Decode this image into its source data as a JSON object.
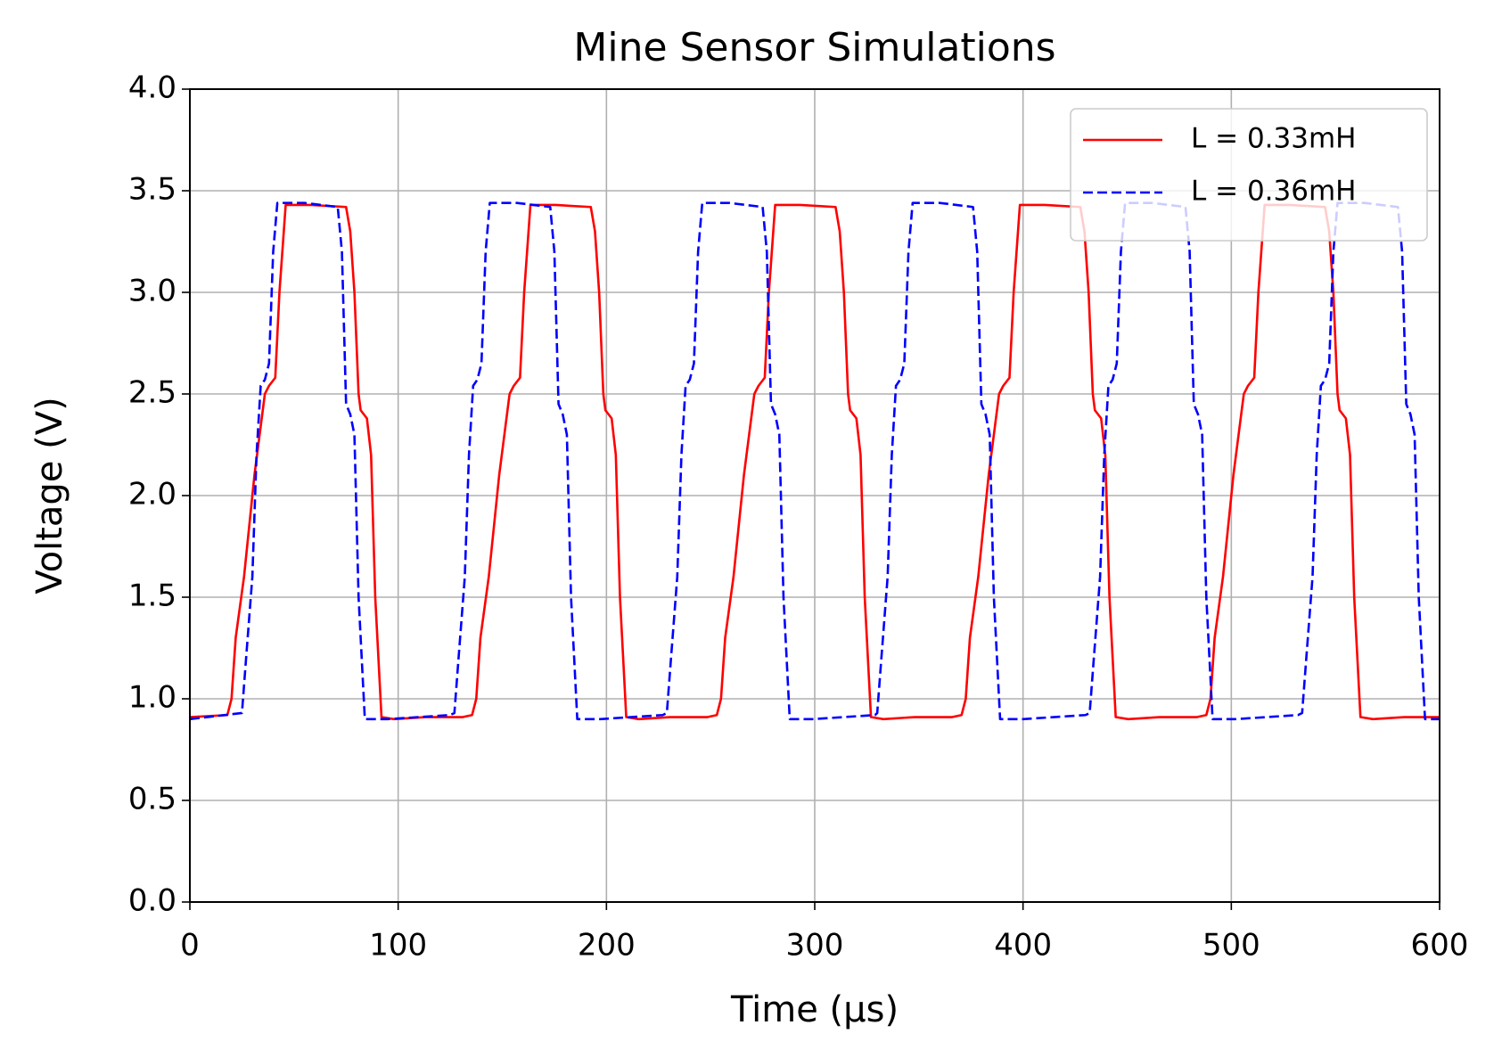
{
  "chart_data": {
    "type": "line",
    "title": "Mine Sensor Simulations",
    "x_label": "Time (µs)",
    "y_label": "Voltage (V)",
    "xlim": [
      0,
      600
    ],
    "ylim": [
      0.0,
      4.0
    ],
    "xticks": [
      0,
      100,
      200,
      300,
      400,
      500,
      600
    ],
    "yticks": [
      {
        "value": 0,
        "label": "0.0"
      },
      0.5,
      {
        "value": 1,
        "label": "1.0"
      },
      1.5,
      {
        "value": 2,
        "label": "2.0"
      },
      2.5,
      {
        "value": 3,
        "label": "3.0"
      },
      3.5,
      {
        "value": 4,
        "label": "4.0"
      }
    ],
    "grid": true,
    "legend": "upper right",
    "series": [
      {
        "name": "L = 0.33mH",
        "color": "#ff0000",
        "linestyle": "solid",
        "x": [
          0,
          18,
          20,
          22,
          26,
          31,
          36,
          38,
          41,
          43,
          46,
          58,
          75,
          77,
          79,
          81,
          82,
          85,
          87,
          89,
          92,
          98,
          113,
          131,
          135.5,
          137.5,
          139.5,
          143.5,
          148.5,
          153.5,
          155.5,
          158.5,
          160.5,
          163.5,
          175.5,
          192.5,
          194.5,
          196.5,
          198.5,
          199.5,
          202.5,
          204.5,
          206.5,
          209.5,
          215.5,
          230.5,
          248.5,
          253,
          255,
          257,
          261,
          266,
          271,
          273,
          276,
          278,
          281,
          293,
          310,
          312,
          314,
          316,
          317,
          320,
          322,
          324,
          327,
          333,
          348,
          366,
          370.5,
          372.5,
          374.5,
          378.5,
          383.5,
          388.5,
          390.5,
          393.5,
          395.5,
          398.5,
          410.5,
          427.5,
          429.5,
          431.5,
          433.5,
          434.5,
          437.5,
          439.5,
          441.5,
          444.5,
          450.5,
          465.5,
          483.5,
          488,
          490,
          492,
          496,
          501,
          506,
          508,
          511,
          513,
          516,
          528,
          545,
          547,
          549,
          551,
          552,
          555,
          557,
          559,
          562,
          568,
          583,
          600
        ],
        "values": [
          0.91,
          0.92,
          1.0,
          1.3,
          1.6,
          2.1,
          2.5,
          2.54,
          2.58,
          3.0,
          3.43,
          3.43,
          3.42,
          3.3,
          3.0,
          2.5,
          2.42,
          2.38,
          2.2,
          1.5,
          0.91,
          0.9,
          0.91,
          0.91,
          0.92,
          1.0,
          1.3,
          1.6,
          2.1,
          2.5,
          2.54,
          2.58,
          3.0,
          3.43,
          3.43,
          3.42,
          3.3,
          3.0,
          2.5,
          2.42,
          2.38,
          2.2,
          1.5,
          0.91,
          0.9,
          0.91,
          0.91,
          0.92,
          1.0,
          1.3,
          1.6,
          2.1,
          2.5,
          2.54,
          2.58,
          3.0,
          3.43,
          3.43,
          3.42,
          3.3,
          3.0,
          2.5,
          2.42,
          2.38,
          2.2,
          1.5,
          0.91,
          0.9,
          0.91,
          0.91,
          0.92,
          1.0,
          1.3,
          1.6,
          2.1,
          2.5,
          2.54,
          2.58,
          3.0,
          3.43,
          3.43,
          3.42,
          3.3,
          3.0,
          2.5,
          2.42,
          2.38,
          2.2,
          1.5,
          0.91,
          0.9,
          0.91,
          0.91,
          0.92,
          1.0,
          1.3,
          1.6,
          2.1,
          2.5,
          2.54,
          2.58,
          3.0,
          3.43,
          3.43,
          3.42,
          3.3,
          3.0,
          2.5,
          2.42,
          2.38,
          2.2,
          1.5,
          0.91,
          0.9,
          0.91,
          0.91
        ]
      },
      {
        "name": "L = 0.36mH",
        "color": "#0000ff",
        "linestyle": "dashed",
        "x": [
          0,
          25,
          27,
          30,
          32,
          34,
          36,
          38,
          40,
          42,
          55,
          71,
          73,
          75,
          77,
          79,
          81,
          84,
          95,
          125,
          127,
          129,
          132,
          134,
          136,
          138,
          140,
          142,
          144,
          157,
          173,
          175,
          177,
          179,
          181,
          183,
          186,
          197,
          227,
          229,
          231,
          234,
          236,
          238,
          240,
          242,
          244,
          246,
          259,
          275,
          277,
          279,
          281,
          283,
          285,
          288,
          299,
          329,
          330,
          332,
          335,
          337,
          339,
          341,
          343,
          345,
          347,
          360,
          376,
          378,
          380,
          382,
          384,
          386,
          389,
          400,
          430,
          432,
          434,
          437,
          439,
          441,
          443,
          445,
          447,
          449,
          462,
          478,
          480,
          482,
          484,
          486,
          488,
          491,
          502,
          532,
          534,
          536,
          539,
          541,
          543,
          545,
          547,
          549,
          551,
          564,
          580,
          582,
          584,
          586,
          588,
          590,
          593,
          600
        ],
        "values": [
          0.9,
          0.93,
          1.2,
          1.6,
          2.2,
          2.54,
          2.57,
          2.65,
          3.2,
          3.44,
          3.44,
          3.42,
          3.2,
          2.45,
          2.4,
          2.3,
          1.5,
          0.9,
          0.9,
          0.92,
          0.93,
          1.2,
          1.6,
          2.2,
          2.54,
          2.57,
          2.65,
          3.2,
          3.44,
          3.44,
          3.42,
          3.2,
          2.45,
          2.4,
          2.3,
          1.5,
          0.9,
          0.9,
          0.92,
          0.93,
          1.2,
          1.6,
          2.2,
          2.54,
          2.57,
          2.65,
          3.2,
          3.44,
          3.44,
          3.42,
          3.2,
          2.45,
          2.4,
          2.3,
          1.5,
          0.9,
          0.9,
          0.92,
          0.93,
          1.2,
          1.6,
          2.2,
          2.54,
          2.57,
          2.65,
          3.2,
          3.44,
          3.44,
          3.42,
          3.2,
          2.45,
          2.4,
          2.3,
          1.5,
          0.9,
          0.9,
          0.92,
          0.93,
          1.2,
          1.6,
          2.2,
          2.54,
          2.57,
          2.65,
          3.2,
          3.44,
          3.44,
          3.42,
          3.2,
          2.45,
          2.4,
          2.3,
          1.5,
          0.9,
          0.9,
          0.92,
          0.93,
          1.2,
          1.6,
          2.2,
          2.54,
          2.57,
          2.65,
          3.2,
          3.44,
          3.44,
          3.42,
          3.2,
          2.45,
          2.4,
          2.3,
          1.5,
          0.9,
          0.9
        ]
      }
    ]
  }
}
